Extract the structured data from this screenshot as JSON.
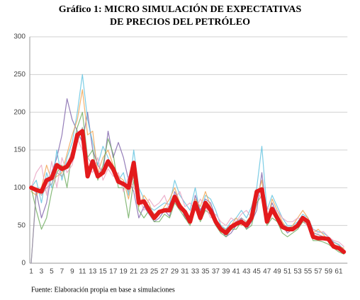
{
  "chart_data": {
    "type": "line",
    "title": [
      "Gráfico 1: MICRO SIMULACIÓN DE EXPECTATIVAS",
      "DE PRECIOS DEL PETRÓLEO"
    ],
    "source": "Fuente: Elaboración propia en base a simulaciones",
    "categories": [
      1,
      null,
      3,
      null,
      5,
      null,
      7,
      null,
      9,
      null,
      11,
      null,
      13,
      null,
      15,
      null,
      17,
      null,
      19,
      null,
      21,
      null,
      23,
      null,
      25,
      null,
      27,
      null,
      29,
      null,
      31,
      null,
      33,
      null,
      35,
      null,
      37,
      null,
      39,
      null,
      41,
      null,
      43,
      null,
      45,
      null,
      47,
      null,
      49,
      null,
      51,
      null,
      53,
      null,
      55,
      null,
      57,
      null,
      59,
      null,
      61,
      null
    ],
    "ylim": [
      0,
      300
    ],
    "yticks": [
      0,
      50,
      100,
      150,
      200,
      250,
      300
    ],
    "grid": true,
    "series": [
      {
        "color": "#7b5ea7",
        "width": 1.2,
        "values": [
          0,
          95,
          60,
          80,
          120,
          140,
          170,
          218,
          190,
          175,
          160,
          200,
          150,
          130,
          120,
          175,
          140,
          160,
          140,
          110,
          95,
          60,
          75,
          65,
          55,
          60,
          70,
          62,
          95,
          80,
          60,
          55,
          90,
          70,
          85,
          80,
          60,
          45,
          35,
          40,
          50,
          60,
          45,
          55,
          70,
          120,
          60,
          80,
          65,
          50,
          40,
          45,
          50,
          62,
          58,
          40,
          38,
          35,
          30,
          25,
          20,
          15
        ]
      },
      {
        "color": "#5bc0de",
        "width": 1.2,
        "values": [
          100,
          110,
          80,
          120,
          100,
          150,
          110,
          140,
          160,
          200,
          250,
          190,
          160,
          130,
          155,
          140,
          120,
          110,
          120,
          90,
          150,
          100,
          85,
          75,
          70,
          75,
          80,
          78,
          110,
          90,
          80,
          70,
          100,
          65,
          90,
          85,
          70,
          50,
          45,
          55,
          60,
          70,
          60,
          75,
          100,
          155,
          70,
          90,
          75,
          60,
          50,
          50,
          55,
          65,
          60,
          45,
          42,
          40,
          35,
          28,
          25,
          18
        ]
      },
      {
        "color": "#f0a04b",
        "width": 1.2,
        "values": [
          95,
          90,
          100,
          130,
          110,
          115,
          120,
          145,
          170,
          190,
          230,
          170,
          175,
          120,
          140,
          150,
          130,
          115,
          110,
          85,
          120,
          75,
          90,
          80,
          60,
          65,
          75,
          85,
          100,
          80,
          70,
          60,
          85,
          75,
          95,
          75,
          55,
          40,
          45,
          50,
          60,
          50,
          55,
          65,
          85,
          110,
          55,
          85,
          70,
          55,
          45,
          50,
          60,
          70,
          60,
          40,
          45,
          38,
          30,
          25,
          22,
          20
        ]
      },
      {
        "color": "#6aaa5a",
        "width": 1.2,
        "values": [
          100,
          70,
          45,
          60,
          95,
          120,
          130,
          100,
          150,
          180,
          200,
          140,
          150,
          110,
          130,
          165,
          145,
          100,
          100,
          60,
          110,
          70,
          60,
          70,
          55,
          55,
          65,
          60,
          80,
          70,
          60,
          50,
          75,
          55,
          70,
          65,
          50,
          40,
          35,
          45,
          45,
          55,
          45,
          50,
          80,
          90,
          50,
          60,
          55,
          40,
          35,
          40,
          45,
          55,
          50,
          30,
          30,
          28,
          25,
          20,
          15,
          12
        ]
      },
      {
        "color": "#a0a0a0",
        "width": 1.2,
        "values": [
          0,
          100,
          90,
          100,
          105,
          120,
          115,
          130,
          150,
          160,
          180,
          140,
          130,
          120,
          125,
          130,
          120,
          110,
          105,
          95,
          115,
          85,
          80,
          75,
          65,
          68,
          72,
          75,
          90,
          78,
          70,
          60,
          80,
          65,
          80,
          72,
          58,
          48,
          45,
          50,
          55,
          60,
          55,
          62,
          88,
          100,
          60,
          75,
          65,
          52,
          48,
          48,
          52,
          60,
          55,
          40,
          38,
          35,
          32,
          28,
          24,
          18
        ]
      },
      {
        "color": "#e8a0c0",
        "width": 1.2,
        "values": [
          100,
          120,
          130,
          90,
          135,
          100,
          140,
          120,
          130,
          165,
          150,
          130,
          120,
          140,
          110,
          125,
          115,
          120,
          95,
          115,
          100,
          90,
          70,
          85,
          75,
          80,
          90,
          70,
          85,
          95,
          75,
          80,
          70,
          85,
          75,
          60,
          65,
          55,
          50,
          60,
          55,
          65,
          70,
          60,
          95,
          85,
          75,
          65,
          70,
          60,
          55,
          55,
          60,
          58,
          48,
          45,
          40,
          42,
          35,
          30,
          28,
          22
        ]
      },
      {
        "color": "#e31a1c",
        "width": 6,
        "values": [
          100,
          97,
          95,
          110,
          113,
          130,
          125,
          128,
          140,
          170,
          175,
          115,
          135,
          115,
          120,
          135,
          125,
          108,
          105,
          100,
          133,
          80,
          82,
          70,
          60,
          68,
          70,
          70,
          88,
          75,
          68,
          55,
          80,
          60,
          80,
          70,
          55,
          45,
          40,
          48,
          52,
          55,
          50,
          60,
          95,
          98,
          55,
          72,
          60,
          48,
          45,
          45,
          50,
          60,
          55,
          35,
          33,
          33,
          32,
          22,
          20,
          15
        ]
      }
    ]
  }
}
